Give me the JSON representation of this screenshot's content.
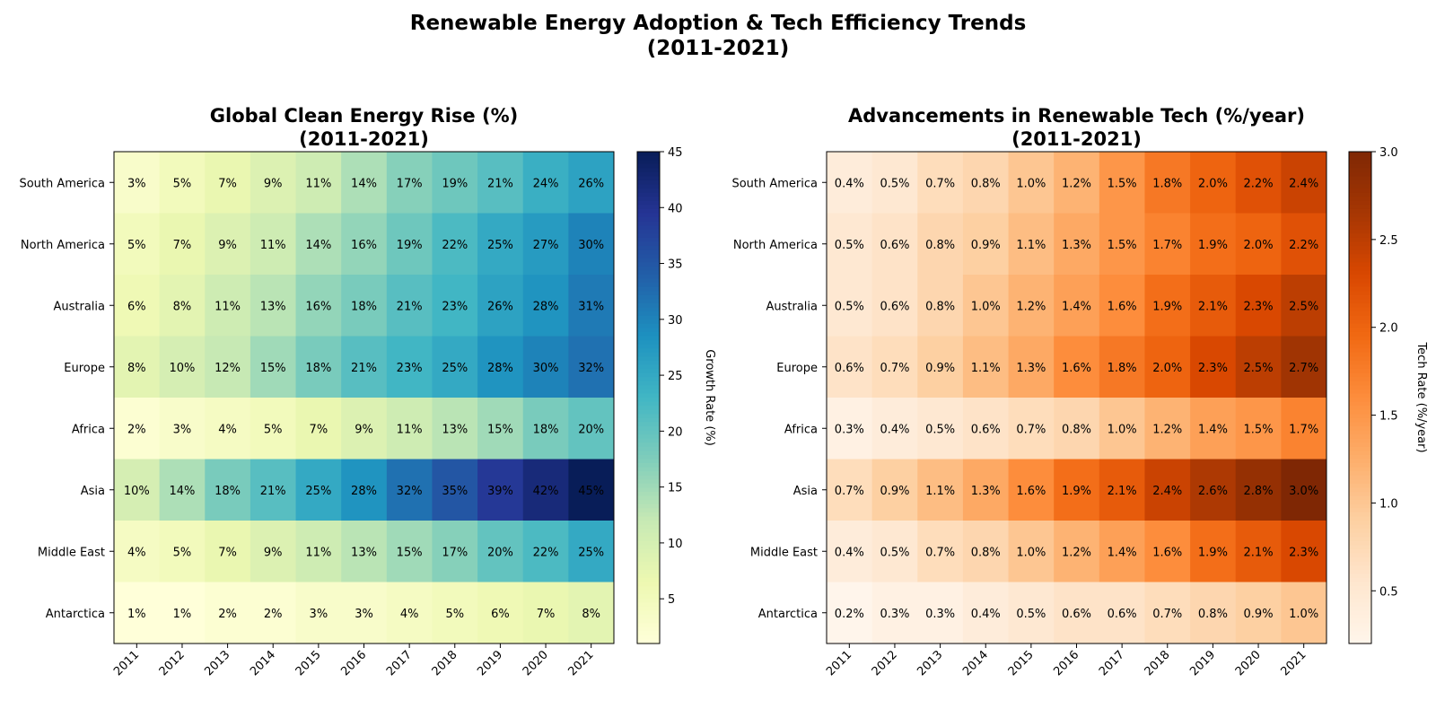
{
  "title_line1": "Renewable Energy Adoption & Tech Efficiency Trends",
  "title_line2": "(2011-2021)",
  "chart_data": [
    {
      "type": "heatmap",
      "title_line1": "Global Clean Energy Rise (%)",
      "title_line2": "(2011-2021)",
      "x": [
        "2011",
        "2012",
        "2013",
        "2014",
        "2015",
        "2016",
        "2017",
        "2018",
        "2019",
        "2020",
        "2021"
      ],
      "y": [
        "South America",
        "North America",
        "Australia",
        "Europe",
        "Africa",
        "Asia",
        "Middle East",
        "Antarctica"
      ],
      "values": [
        [
          3,
          5,
          7,
          9,
          11,
          14,
          17,
          19,
          21,
          24,
          26
        ],
        [
          5,
          7,
          9,
          11,
          14,
          16,
          19,
          22,
          25,
          27,
          30
        ],
        [
          6,
          8,
          11,
          13,
          16,
          18,
          21,
          23,
          26,
          28,
          31
        ],
        [
          8,
          10,
          12,
          15,
          18,
          21,
          23,
          25,
          28,
          30,
          32
        ],
        [
          2,
          3,
          4,
          5,
          7,
          9,
          11,
          13,
          15,
          18,
          20
        ],
        [
          10,
          14,
          18,
          21,
          25,
          28,
          32,
          35,
          39,
          42,
          45
        ],
        [
          4,
          5,
          7,
          9,
          11,
          13,
          15,
          17,
          20,
          22,
          25
        ],
        [
          1,
          1,
          2,
          2,
          3,
          3,
          4,
          5,
          6,
          7,
          8
        ]
      ],
      "value_format": "{v}%",
      "decimals": 0,
      "colormap": "YlGnBu",
      "color_range": [
        1,
        45
      ],
      "colorbar_ticks": [
        "5",
        "10",
        "15",
        "20",
        "25",
        "30",
        "35",
        "40",
        "45"
      ],
      "colorbar_label": "Growth Rate (%)"
    },
    {
      "type": "heatmap",
      "title_line1": "Advancements in Renewable Tech (%/year)",
      "title_line2": "(2011-2021)",
      "x": [
        "2011",
        "2012",
        "2013",
        "2014",
        "2015",
        "2016",
        "2017",
        "2018",
        "2019",
        "2020",
        "2021"
      ],
      "y": [
        "South America",
        "North America",
        "Australia",
        "Europe",
        "Africa",
        "Asia",
        "Middle East",
        "Antarctica"
      ],
      "values": [
        [
          0.4,
          0.5,
          0.7,
          0.8,
          1.0,
          1.2,
          1.5,
          1.8,
          2.0,
          2.2,
          2.4
        ],
        [
          0.5,
          0.6,
          0.8,
          0.9,
          1.1,
          1.3,
          1.5,
          1.7,
          1.9,
          2.0,
          2.2
        ],
        [
          0.5,
          0.6,
          0.8,
          1.0,
          1.2,
          1.4,
          1.6,
          1.9,
          2.1,
          2.3,
          2.5
        ],
        [
          0.6,
          0.7,
          0.9,
          1.1,
          1.3,
          1.6,
          1.8,
          2.0,
          2.3,
          2.5,
          2.7
        ],
        [
          0.3,
          0.4,
          0.5,
          0.6,
          0.7,
          0.8,
          1.0,
          1.2,
          1.4,
          1.5,
          1.7
        ],
        [
          0.7,
          0.9,
          1.1,
          1.3,
          1.6,
          1.9,
          2.1,
          2.4,
          2.6,
          2.8,
          3.0
        ],
        [
          0.4,
          0.5,
          0.7,
          0.8,
          1.0,
          1.2,
          1.4,
          1.6,
          1.9,
          2.1,
          2.3
        ],
        [
          0.2,
          0.3,
          0.3,
          0.4,
          0.5,
          0.6,
          0.6,
          0.7,
          0.8,
          0.9,
          1.0
        ]
      ],
      "value_format": "{v}%",
      "decimals": 1,
      "colormap": "Oranges",
      "color_range": [
        0.2,
        3.0
      ],
      "colorbar_ticks": [
        "0.5",
        "1.0",
        "1.5",
        "2.0",
        "2.5",
        "3.0"
      ],
      "colorbar_label": "Tech Rate (%/year)"
    }
  ]
}
